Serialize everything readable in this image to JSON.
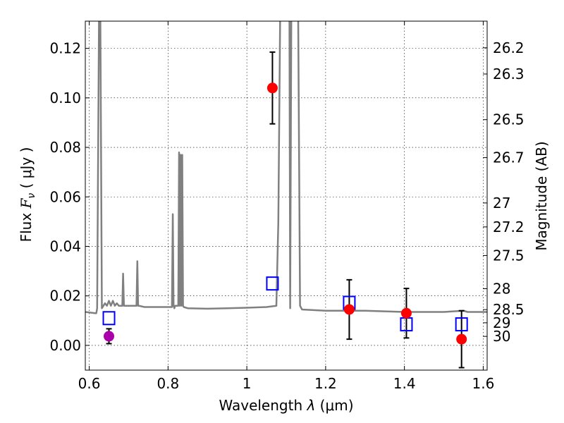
{
  "chart_data": {
    "type": "scatter",
    "xlabel_main": "Wavelength  ",
    "xlabel_lambda": "λ",
    "xlabel_unit": " (μm)",
    "ylabel_main": "Flux  ",
    "ylabel_F": "F",
    "ylabel_nu": "ν",
    "ylabel_unit": "  ( μJy )",
    "y2label": "Magnitude (AB)",
    "xlim": [
      0.59,
      1.61
    ],
    "ylim": [
      -0.01,
      0.131
    ],
    "grid": true,
    "x_ticks": [
      0.6,
      0.8,
      1.0,
      1.2,
      1.4,
      1.6
    ],
    "x_tick_labels": [
      "0.6",
      "0.8",
      "1",
      "1.2",
      "1.4",
      "1.6"
    ],
    "y_ticks": [
      0.0,
      0.02,
      0.04,
      0.06,
      0.08,
      0.1,
      0.12
    ],
    "y_tick_labels": [
      "0.00",
      "0.02",
      "0.04",
      "0.06",
      "0.08",
      "0.10",
      "0.12"
    ],
    "mag_ticks": [
      "26.2",
      "26.3",
      "26.5",
      "26.7",
      "27",
      "27.2",
      "27.5",
      "28",
      "28.5",
      "29",
      "30"
    ],
    "template_spectrum": {
      "color": "#808080",
      "x": [
        0.59,
        0.615,
        0.618,
        0.62,
        0.625,
        0.628,
        0.632,
        0.64,
        0.645,
        0.65,
        0.655,
        0.66,
        0.665,
        0.67,
        0.675,
        0.68,
        0.684,
        0.686,
        0.688,
        0.7,
        0.72,
        0.722,
        0.724,
        0.726,
        0.74,
        0.78,
        0.81,
        0.812,
        0.814,
        0.816,
        0.818,
        0.822,
        0.826,
        0.828,
        0.83,
        0.832,
        0.834,
        0.836,
        0.838,
        0.84,
        0.85,
        0.9,
        0.95,
        1.0,
        1.05,
        1.075,
        1.08,
        1.085,
        1.09,
        1.095,
        1.1,
        1.105,
        1.108,
        1.11,
        1.113,
        1.116,
        1.12,
        1.125,
        1.13,
        1.135,
        1.14,
        1.2,
        1.3,
        1.4,
        1.5,
        1.55,
        1.56,
        1.6,
        1.61
      ],
      "y": [
        0.0135,
        0.013,
        0.013,
        0.015,
        0.14,
        0.14,
        0.015,
        0.017,
        0.016,
        0.018,
        0.016,
        0.018,
        0.016,
        0.017,
        0.016,
        0.016,
        0.016,
        0.029,
        0.016,
        0.016,
        0.016,
        0.034,
        0.016,
        0.016,
        0.0155,
        0.0155,
        0.0155,
        0.053,
        0.016,
        0.015,
        0.016,
        0.016,
        0.016,
        0.078,
        0.016,
        0.077,
        0.016,
        0.077,
        0.016,
        0.0155,
        0.015,
        0.0148,
        0.015,
        0.0152,
        0.0155,
        0.016,
        0.05,
        0.14,
        0.14,
        0.14,
        0.14,
        0.14,
        0.14,
        0.015,
        0.14,
        0.14,
        0.14,
        0.14,
        0.14,
        0.016,
        0.0145,
        0.014,
        0.014,
        0.0135,
        0.0135,
        0.014,
        0.0135,
        0.0135,
        0.0135
      ]
    },
    "model_photometry": {
      "marker": "open-square",
      "color": "#0000ff",
      "x": [
        0.65,
        1.065,
        1.26,
        1.405,
        1.545
      ],
      "y": [
        0.011,
        0.025,
        0.0172,
        0.0085,
        0.0085
      ]
    },
    "observed_photometry": {
      "marker": "filled-circle",
      "color": "#ff0000",
      "x": [
        1.065,
        1.26,
        1.405,
        1.545
      ],
      "y": [
        0.104,
        0.0145,
        0.013,
        0.0025
      ],
      "yerr": [
        0.0145,
        0.012,
        0.01,
        0.0115
      ]
    },
    "observed_special": {
      "marker": "filled-circle",
      "color": "#aa00aa",
      "x": [
        0.65
      ],
      "y": [
        0.0037
      ],
      "yerr": [
        0.003
      ]
    },
    "error_bar_color": "#000000"
  }
}
